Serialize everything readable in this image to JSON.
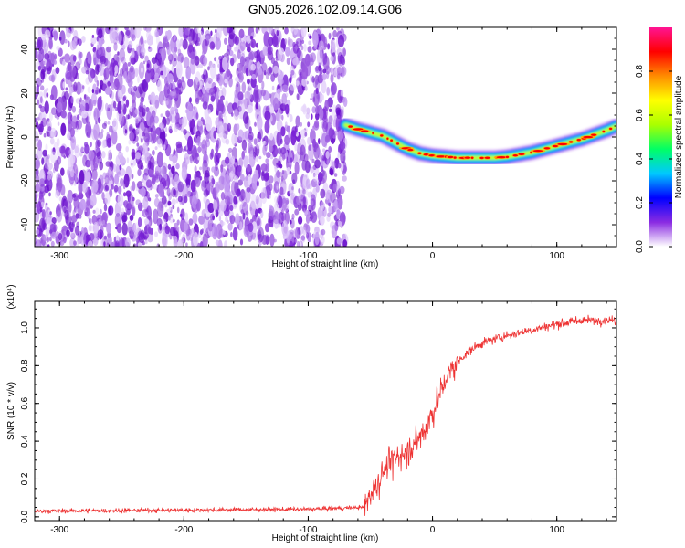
{
  "title": "GN05.2026.102.09.14.G06",
  "chart_data": [
    {
      "type": "heatmap",
      "xlabel": "Height of straight line (km)",
      "ylabel": "Frequency (Hz)",
      "xlim": [
        -320,
        148
      ],
      "ylim": [
        -50,
        50
      ],
      "xticks": [
        -300,
        -200,
        -100,
        0,
        100
      ],
      "yticks": [
        -40,
        -20,
        0,
        20,
        40
      ],
      "noise_region": [
        -320,
        -70
      ],
      "ridge": {
        "x": [
          -70,
          -60,
          -50,
          -40,
          -30,
          -20,
          -10,
          0,
          10,
          20,
          30,
          40,
          50,
          60,
          70,
          80,
          90,
          100,
          110,
          120,
          130,
          140,
          148
        ],
        "freq": [
          5.5,
          3.5,
          2,
          0.5,
          -2.5,
          -5.5,
          -7.5,
          -8.5,
          -9,
          -9.5,
          -9.5,
          -9.5,
          -9.5,
          -9,
          -8,
          -7,
          -5.5,
          -4,
          -2.5,
          -1,
          1,
          3,
          5
        ]
      },
      "colorbar": {
        "label": "Normalized spectral amplitude",
        "range": [
          0,
          1
        ],
        "ticks": [
          "0.0",
          "0.2",
          "0.4",
          "0.6",
          "0.8"
        ],
        "colors": [
          "#ffffff",
          "#8a2be2",
          "#0000ff",
          "#00c8ff",
          "#00ff66",
          "#aaff00",
          "#ffff00",
          "#ff8c00",
          "#ff0000",
          "#ff1493"
        ]
      }
    },
    {
      "type": "line",
      "xlabel": "Height of straight line (km)",
      "ylabel": "SNR (10 * v/v)",
      "multiplier": "(x10⁴)",
      "xlim": [
        -320,
        148
      ],
      "ylim": [
        -0.02,
        1.14
      ],
      "xticks": [
        -300,
        -200,
        -100,
        0,
        100
      ],
      "yticks": [
        "0.0",
        "0.2",
        "0.4",
        "0.6",
        "0.8",
        "1.0"
      ],
      "color": "#ee3333",
      "trend": {
        "x": [
          -320,
          -100,
          -55,
          -50,
          -40,
          -30,
          -20,
          -10,
          0,
          10,
          20,
          30,
          40,
          60,
          80,
          100,
          120,
          148
        ],
        "y": [
          0.03,
          0.04,
          0.05,
          0.12,
          0.24,
          0.32,
          0.35,
          0.42,
          0.55,
          0.72,
          0.82,
          0.88,
          0.92,
          0.96,
          0.99,
          1.02,
          1.04,
          1.04
        ]
      }
    }
  ]
}
